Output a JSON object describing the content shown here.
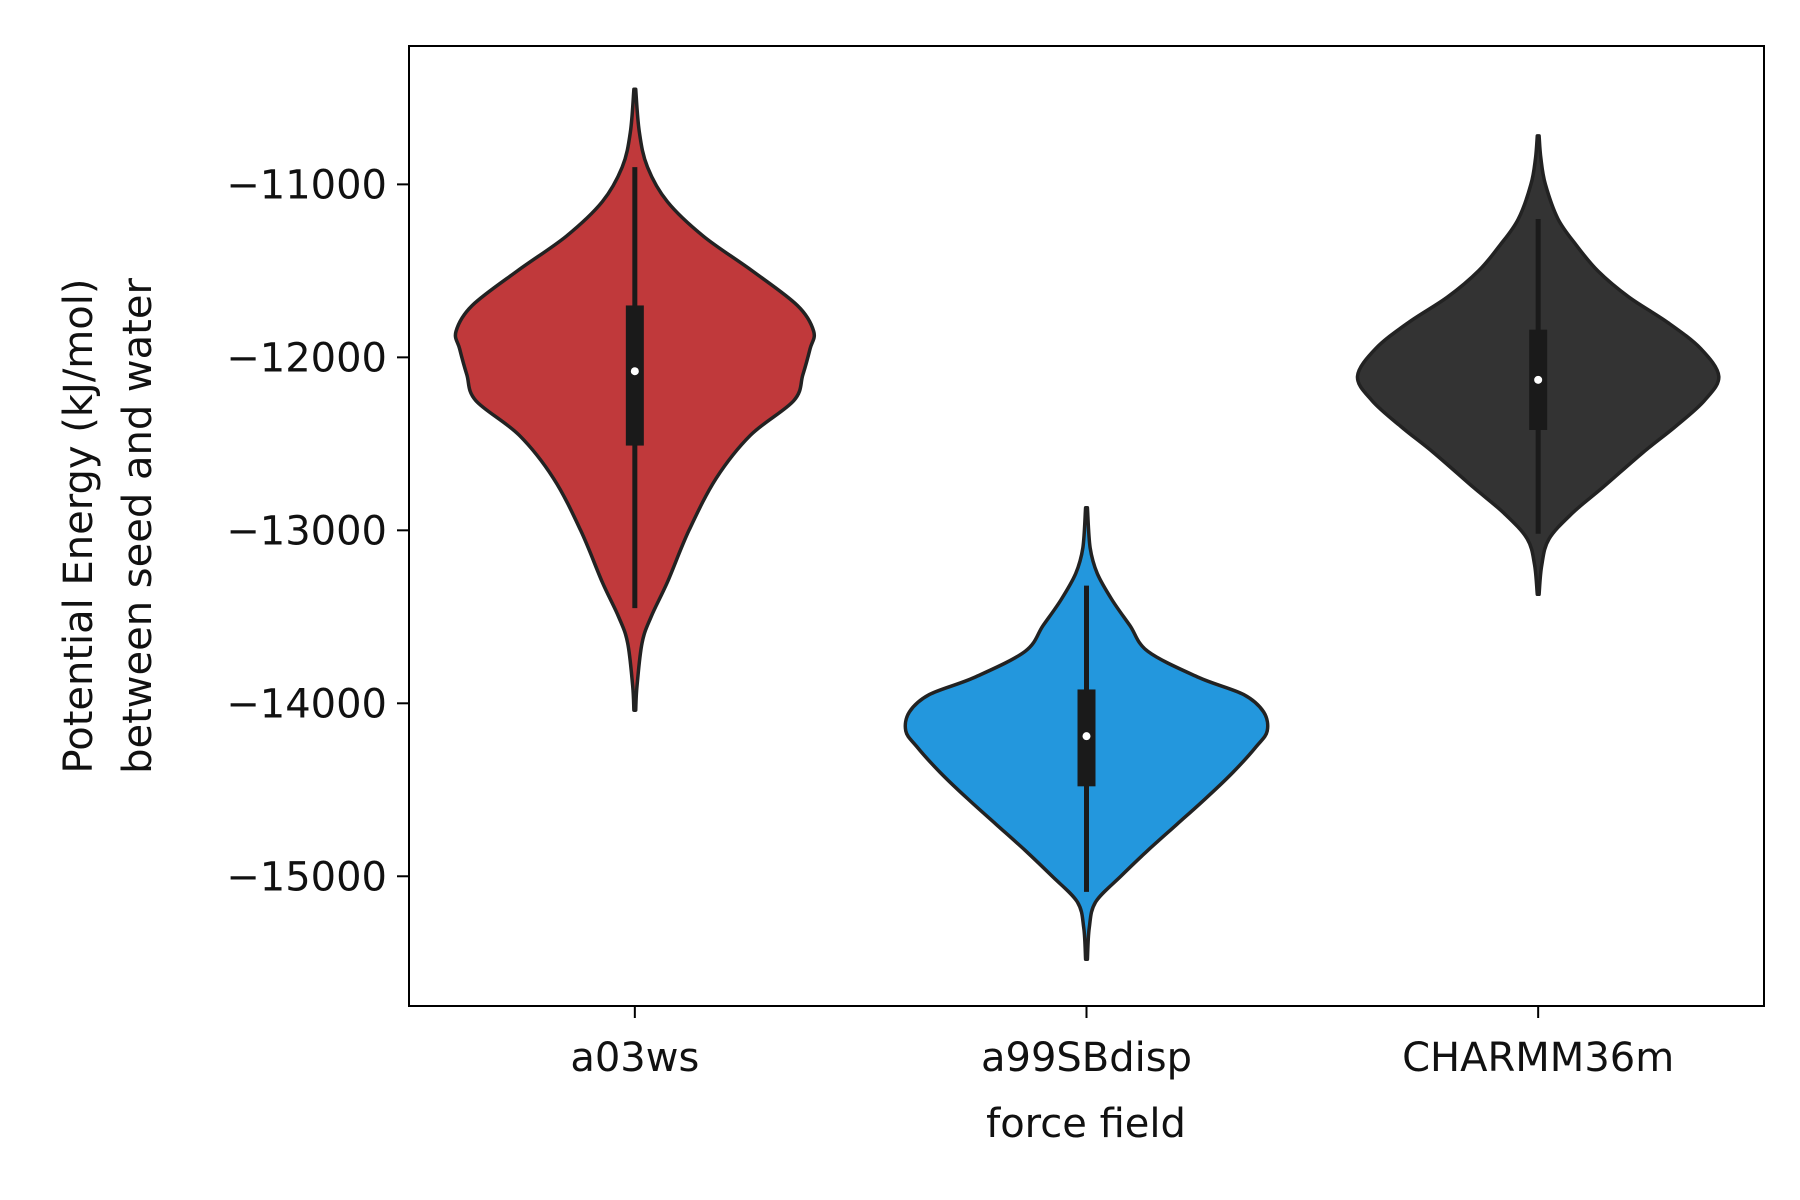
{
  "chart_data": {
    "type": "violin",
    "xlabel": "force field",
    "ylabel_lines": [
      "Potential Energy (kJ/mol)",
      "between seed and water"
    ],
    "ylim": [
      -15750,
      -10200
    ],
    "yticks": [
      -11000,
      -12000,
      -13000,
      -14000,
      -15000
    ],
    "ytick_labels": [
      "−11000",
      "−12000",
      "−13000",
      "−14000",
      "−15000"
    ],
    "categories": [
      "a03ws",
      "a99SBdisp",
      "CHARMM36m"
    ],
    "series": [
      {
        "category": "a03ws",
        "color": "#c0393b",
        "median": -12080,
        "q1": -12510,
        "q3": -11700,
        "whisker_low": -13450,
        "whisker_high": -10900,
        "profile": [
          [
            -14040,
            0.005
          ],
          [
            -13900,
            0.012
          ],
          [
            -13650,
            0.04
          ],
          [
            -13500,
            0.09
          ],
          [
            -13300,
            0.18
          ],
          [
            -13000,
            0.3
          ],
          [
            -12700,
            0.45
          ],
          [
            -12450,
            0.64
          ],
          [
            -12250,
            0.88
          ],
          [
            -12100,
            0.93
          ],
          [
            -11950,
            0.97
          ],
          [
            -11850,
            0.99
          ],
          [
            -11700,
            0.9
          ],
          [
            -11500,
            0.65
          ],
          [
            -11300,
            0.38
          ],
          [
            -11100,
            0.18
          ],
          [
            -10900,
            0.07
          ],
          [
            -10700,
            0.025
          ],
          [
            -10450,
            0.005
          ]
        ]
      },
      {
        "category": "a99SBdisp",
        "color": "#2397dd",
        "median": -14190,
        "q1": -14480,
        "q3": -13920,
        "whisker_low": -15090,
        "whisker_high": -13320,
        "profile": [
          [
            -15480,
            0.005
          ],
          [
            -15300,
            0.015
          ],
          [
            -15150,
            0.05
          ],
          [
            -15000,
            0.19
          ],
          [
            -14850,
            0.34
          ],
          [
            -14700,
            0.5
          ],
          [
            -14550,
            0.66
          ],
          [
            -14400,
            0.81
          ],
          [
            -14250,
            0.94
          ],
          [
            -14160,
            1.0
          ],
          [
            -14050,
            0.98
          ],
          [
            -13950,
            0.87
          ],
          [
            -13850,
            0.62
          ],
          [
            -13700,
            0.34
          ],
          [
            -13550,
            0.24
          ],
          [
            -13400,
            0.14
          ],
          [
            -13250,
            0.06
          ],
          [
            -13100,
            0.02
          ],
          [
            -12870,
            0.005
          ]
        ]
      },
      {
        "category": "CHARMM36m",
        "color": "#333333",
        "median": -12130,
        "q1": -12420,
        "q3": -11840,
        "whisker_low": -13020,
        "whisker_high": -11200,
        "profile": [
          [
            -13370,
            0.005
          ],
          [
            -13200,
            0.02
          ],
          [
            -13050,
            0.06
          ],
          [
            -12900,
            0.19
          ],
          [
            -12750,
            0.36
          ],
          [
            -12550,
            0.58
          ],
          [
            -12400,
            0.76
          ],
          [
            -12250,
            0.92
          ],
          [
            -12110,
            1.0
          ],
          [
            -11950,
            0.9
          ],
          [
            -11800,
            0.72
          ],
          [
            -11650,
            0.5
          ],
          [
            -11500,
            0.33
          ],
          [
            -11350,
            0.21
          ],
          [
            -11200,
            0.11
          ],
          [
            -11000,
            0.04
          ],
          [
            -10850,
            0.015
          ],
          [
            -10720,
            0.005
          ]
        ]
      }
    ]
  }
}
